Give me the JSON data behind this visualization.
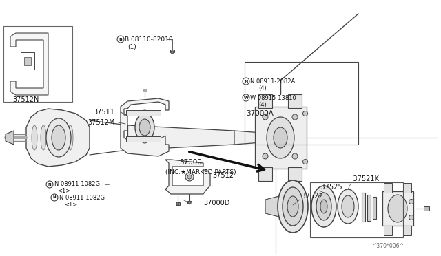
{
  "bg_color": "#ffffff",
  "line_color": "#444444",
  "dark_line": "#111111",
  "fig_width": 6.4,
  "fig_height": 3.72,
  "dpi": 100,
  "watermark": "^370*006^",
  "labels": {
    "bolt_top": "B 08110-82010",
    "bolt_top_qty": "(1)",
    "part_37511": "37511",
    "part_37512M": "37512M",
    "part_37512N": "37512N",
    "part_37512": "37512",
    "part_37000A": "37000A",
    "part_37000": "37000",
    "part_37000_note": "(INC.★MARKED PARTS)",
    "part_37000D": "37000D",
    "bolt_N08911_2082A": "N 08911-2082A",
    "bolt_N08911_2082A_qty": "(4)",
    "bolt_W08915_13810": "W 08915-13810",
    "bolt_W08915_13810_qty": "(4)",
    "bolt_N08911_1082G_1": "N 08911-1082G",
    "bolt_N08911_1082G_1_qty": "<1>",
    "bolt_N08911_1082G_2": "N 08911-1082G",
    "bolt_N08911_1082G_2_qty": "<1>",
    "part_37521K": " 37521K",
    "part_37525": " 37525",
    "part_37522": " 37522"
  }
}
